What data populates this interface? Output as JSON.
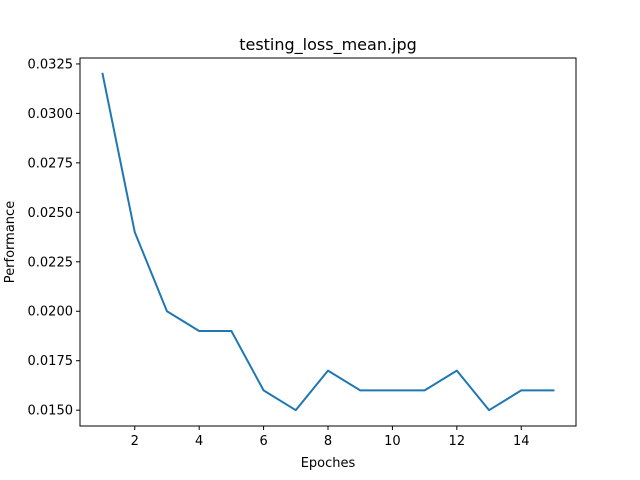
{
  "chart_data": {
    "type": "line",
    "title": "testing_loss_mean.jpg",
    "xlabel": "Epoches",
    "ylabel": "Performance",
    "xlim": [
      0.3,
      15.7
    ],
    "ylim": [
      0.0142,
      0.0328
    ],
    "xticks": [
      2,
      4,
      6,
      8,
      10,
      12,
      14
    ],
    "xtick_labels": [
      "2",
      "4",
      "6",
      "8",
      "10",
      "12",
      "14"
    ],
    "yticks": [
      0.015,
      0.0175,
      0.02,
      0.0225,
      0.025,
      0.0275,
      0.03,
      0.0325
    ],
    "ytick_labels": [
      "0.0150",
      "0.0175",
      "0.0200",
      "0.0225",
      "0.0250",
      "0.0275",
      "0.0300",
      "0.0325"
    ],
    "grid": false,
    "legend": "none",
    "series": [
      {
        "color": "#1f77b4",
        "x": [
          1,
          2,
          3,
          4,
          5,
          6,
          7,
          8,
          9,
          10,
          11,
          12,
          13,
          14,
          15
        ],
        "y": [
          0.032,
          0.024,
          0.02,
          0.019,
          0.019,
          0.016,
          0.015,
          0.017,
          0.016,
          0.016,
          0.016,
          0.017,
          0.015,
          0.016,
          0.016
        ]
      }
    ]
  }
}
